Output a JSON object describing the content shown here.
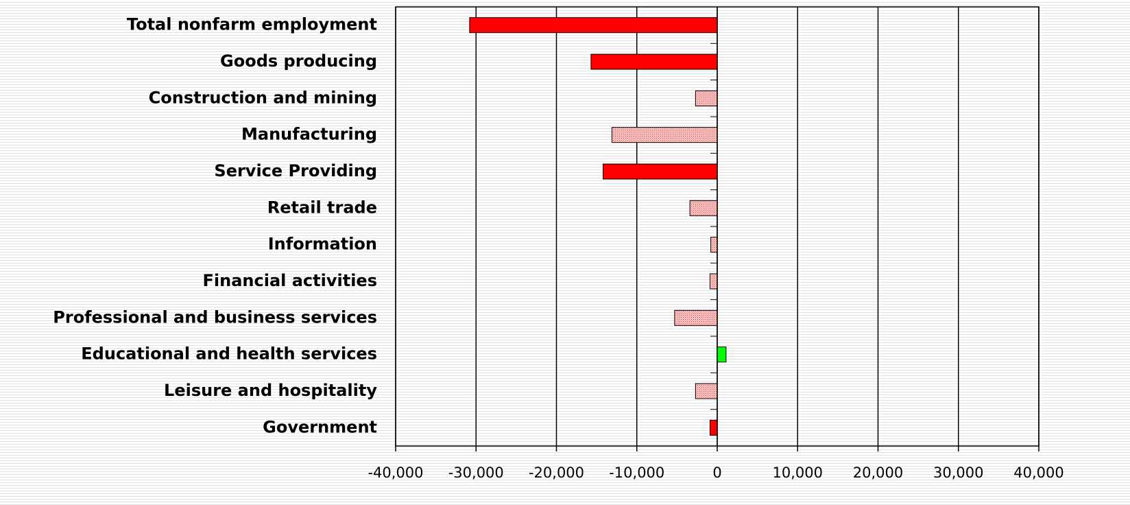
{
  "chart_data": {
    "type": "hbar",
    "categories": [
      "Total nonfarm employment",
      "Goods producing",
      "Construction and mining",
      "Manufacturing",
      "Service Providing",
      "Retail trade",
      "Information",
      "Financial activities",
      "Professional and business services",
      "Educational and health services",
      "Leisure and hospitality",
      "Government"
    ],
    "values": [
      -30800,
      -15700,
      -2700,
      -13100,
      -14200,
      -3400,
      -800,
      -900,
      -5300,
      1100,
      -2700,
      -900
    ],
    "colors": [
      "#ff0000",
      "#ff0000",
      "#ff9999",
      "#ff9999",
      "#ff0000",
      "#ff9999",
      "#ff9999",
      "#ff9999",
      "#ff9999",
      "#00ff00",
      "#ff9999",
      "#ff0000"
    ],
    "hatched": [
      false,
      false,
      true,
      true,
      false,
      true,
      true,
      true,
      true,
      false,
      true,
      false
    ],
    "xlim": [
      -40000,
      40000
    ],
    "xticks": [
      {
        "value": -40000,
        "label": "-40,000"
      },
      {
        "value": -30000,
        "label": "-30,000"
      },
      {
        "value": -20000,
        "label": "-20,000"
      },
      {
        "value": -10000,
        "label": "-10,000"
      },
      0,
      {
        "value": 10000,
        "label": "10,000"
      },
      {
        "value": 20000,
        "label": "20,000"
      },
      {
        "value": 30000,
        "label": "30,000"
      },
      {
        "value": 40000,
        "label": "40,000"
      }
    ],
    "grid": true
  }
}
